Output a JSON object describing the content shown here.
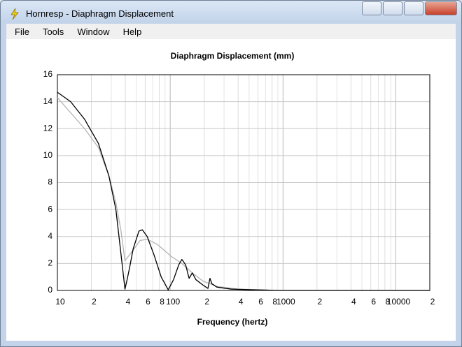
{
  "window": {
    "title": "Hornresp - Diaphragm Displacement",
    "menu": [
      "File",
      "Tools",
      "Window",
      "Help"
    ]
  },
  "chart_data": {
    "type": "line",
    "title": "Diaphragm Displacement (mm)",
    "x_label": "Frequency (hertz)",
    "x_log": true,
    "grid": true,
    "xlim": [
      10,
      20000
    ],
    "ylim": [
      0,
      16
    ],
    "yticks": [
      0,
      2,
      4,
      6,
      8,
      10,
      12,
      14,
      16
    ],
    "xticks": [
      10,
      {
        "value": 20,
        "label": "2"
      },
      {
        "value": 40,
        "label": "4"
      },
      {
        "value": 60,
        "label": "6"
      },
      {
        "value": 80,
        "label": "8"
      },
      100,
      {
        "value": 200,
        "label": "2"
      },
      {
        "value": 400,
        "label": "4"
      },
      {
        "value": 600,
        "label": "6"
      },
      {
        "value": 800,
        "label": "8"
      },
      1000,
      {
        "value": 2000,
        "label": "2"
      },
      {
        "value": 4000,
        "label": "4"
      },
      {
        "value": 6000,
        "label": "6"
      },
      {
        "value": 8000,
        "label": "8"
      },
      10000,
      {
        "value": 20000,
        "label": "2"
      }
    ],
    "xgrid_minor": [
      30,
      50,
      70,
      90,
      300,
      500,
      700,
      900,
      3000,
      5000,
      7000,
      9000
    ],
    "series": [
      {
        "color": "#b4b4b4",
        "x": [
          10,
          17.4,
          23.1,
          28.6,
          33,
          36.5,
          39.7,
          47,
          54,
          62.5,
          77.4,
          103,
          127,
          157,
          195,
          259,
          397,
          935,
          20000
        ],
        "values": [
          14.3,
          12.0,
          10.6,
          8.5,
          6.5,
          4.5,
          2.2,
          3.0,
          3.7,
          3.8,
          3.4,
          2.5,
          2.0,
          1.3,
          0.7,
          0.3,
          0.1,
          0.0,
          0.0
        ]
      },
      {
        "color": "#000000",
        "x": [
          10,
          13.1,
          17.4,
          23.1,
          28.6,
          33,
          36.5,
          39.7,
          41.5,
          43.9,
          47,
          52.8,
          56.6,
          62.5,
          72.1,
          83.2,
          96,
          107,
          119,
          127,
          137,
          147,
          157,
          169,
          195,
          216,
          225,
          234,
          259,
          345,
          526,
          935,
          20000
        ],
        "values": [
          14.7,
          14.0,
          12.7,
          10.9,
          8.5,
          6.0,
          2.8,
          0.1,
          0.8,
          1.8,
          3.1,
          4.4,
          4.5,
          4.0,
          2.6,
          1.0,
          0.05,
          0.8,
          1.9,
          2.3,
          1.9,
          0.9,
          1.3,
          0.8,
          0.4,
          0.15,
          0.9,
          0.5,
          0.25,
          0.1,
          0.05,
          0.0,
          0.0
        ]
      }
    ]
  }
}
